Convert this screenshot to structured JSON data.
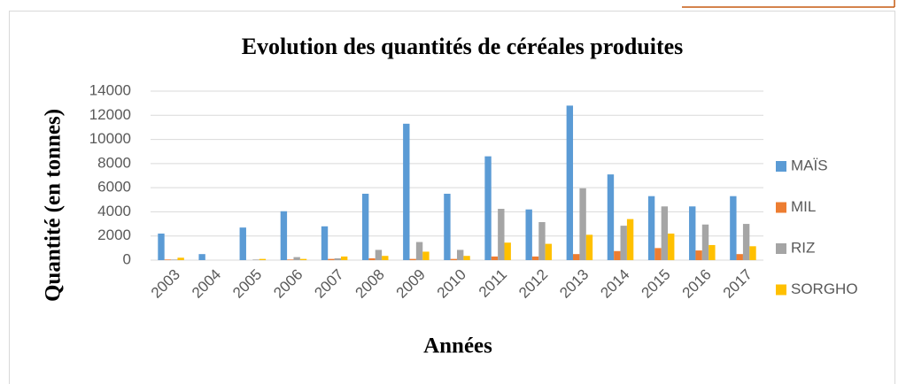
{
  "chart_data": {
    "type": "bar",
    "title": "Evolution des quantités de céréales produites",
    "x_label": "Années",
    "y_label": "Quantité (en tonnes)",
    "categories": [
      "2003",
      "2004",
      "2005",
      "2006",
      "2007",
      "2008",
      "2009",
      "2010",
      "2011",
      "2012",
      "2013",
      "2014",
      "2015",
      "2016",
      "2017"
    ],
    "series": [
      {
        "name": "MAÏS",
        "color": "#5b9bd5",
        "values": [
          2200,
          500,
          2700,
          4050,
          2800,
          5500,
          11300,
          5500,
          8600,
          4200,
          12800,
          7100,
          5300,
          4450,
          5300
        ]
      },
      {
        "name": "MIL",
        "color": "#ed7d31",
        "values": [
          50,
          0,
          0,
          50,
          100,
          150,
          100,
          100,
          300,
          300,
          500,
          750,
          1000,
          800,
          500
        ]
      },
      {
        "name": "RIZ",
        "color": "#a5a5a5",
        "values": [
          50,
          0,
          50,
          250,
          150,
          850,
          1500,
          850,
          4250,
          3150,
          5950,
          2850,
          4450,
          2950,
          3000
        ]
      },
      {
        "name": "SORGHO",
        "color": "#ffc000",
        "values": [
          200,
          0,
          100,
          100,
          300,
          350,
          700,
          350,
          1450,
          1350,
          2100,
          3400,
          2200,
          1250,
          1150
        ]
      }
    ],
    "ylim": [
      0,
      14000
    ],
    "yticks": [
      0,
      2000,
      4000,
      6000,
      8000,
      10000,
      12000,
      14000
    ],
    "grid": true,
    "legend": "right"
  }
}
